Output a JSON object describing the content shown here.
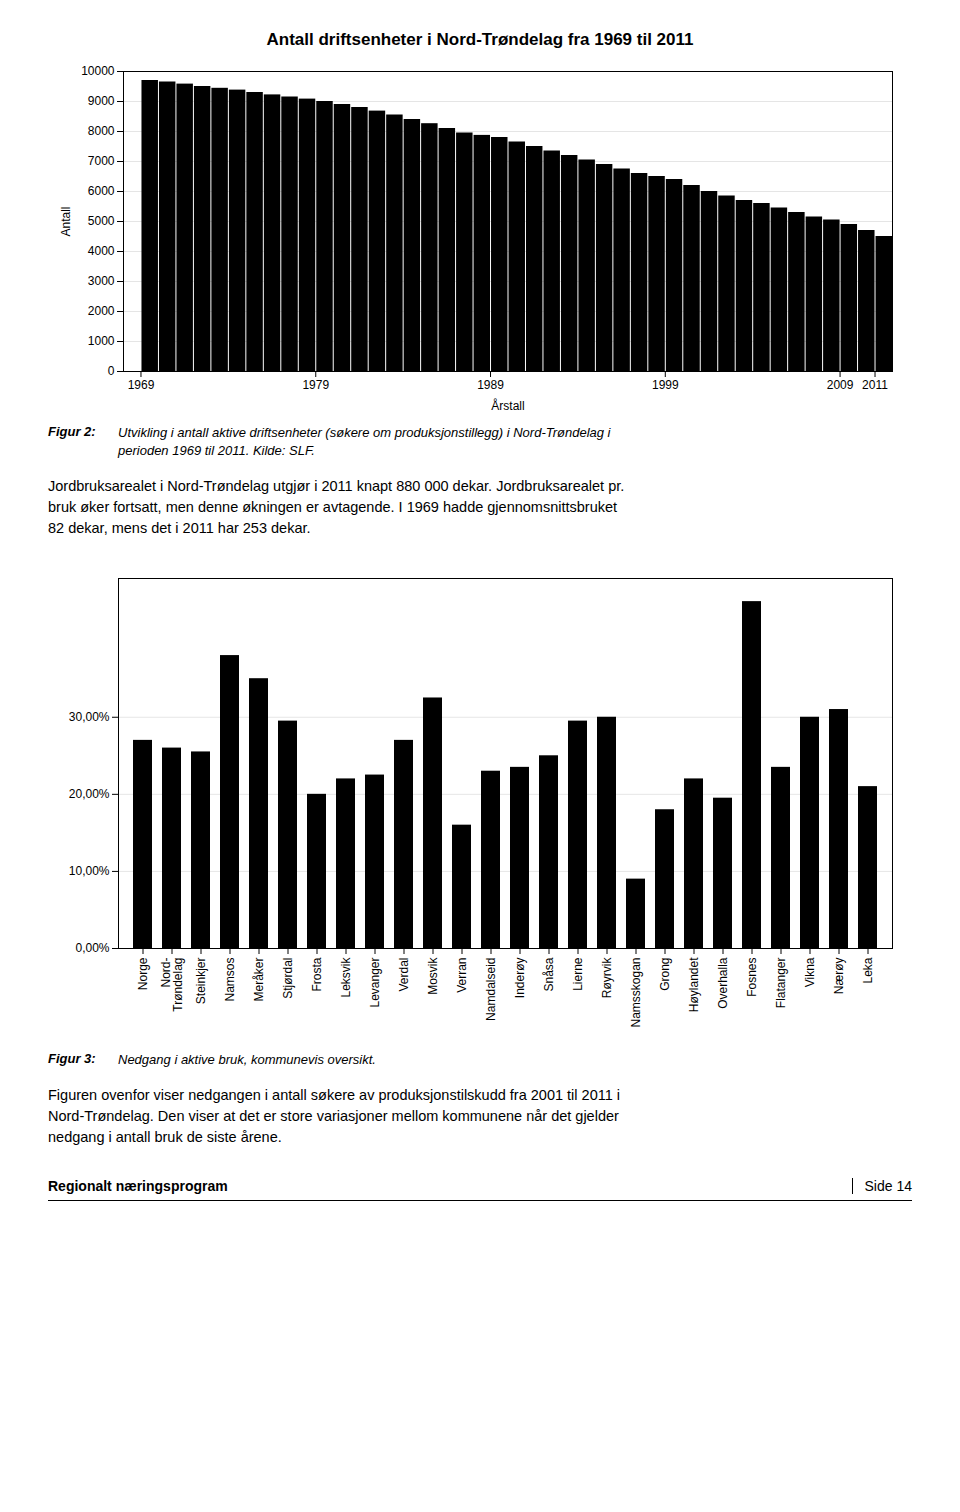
{
  "chart_data": [
    {
      "type": "bar",
      "title": "Antall driftsenheter i Nord-Trøndelag fra 1969 til 2011",
      "xlabel": "Årstall",
      "ylabel": "Antall",
      "x": [
        1969,
        1970,
        1971,
        1972,
        1973,
        1974,
        1975,
        1976,
        1977,
        1978,
        1979,
        1980,
        1981,
        1982,
        1983,
        1984,
        1985,
        1986,
        1987,
        1988,
        1989,
        1990,
        1991,
        1992,
        1993,
        1994,
        1995,
        1996,
        1997,
        1998,
        1999,
        2000,
        2001,
        2002,
        2003,
        2004,
        2005,
        2006,
        2007,
        2008,
        2009,
        2010,
        2011
      ],
      "values": [
        9700,
        9650,
        9580,
        9500,
        9440,
        9380,
        9300,
        9220,
        9150,
        9080,
        9000,
        8900,
        8800,
        8680,
        8550,
        8400,
        8260,
        8100,
        7950,
        7870,
        7800,
        7650,
        7500,
        7350,
        7200,
        7050,
        6900,
        6750,
        6600,
        6500,
        6400,
        6200,
        6000,
        5850,
        5700,
        5600,
        5450,
        5300,
        5150,
        5050,
        4900,
        4700,
        4500
      ],
      "color": "#000000",
      "xlim": [
        1968,
        2012
      ],
      "xticks": [
        1969,
        1979,
        1989,
        1999,
        2009,
        2011
      ],
      "ylim": [
        0,
        10000
      ],
      "yticks": [
        0,
        1000,
        2000,
        3000,
        4000,
        5000,
        6000,
        7000,
        8000,
        9000,
        10000
      ],
      "grid": true,
      "annotations": [
        [
          "Figur 2:",
          "Utvikling i antall aktive driftsenheter (søkere om produksjonstillegg) i Nord-Trøndelag i",
          "perioden 1969 til 2011. Kilde: SLF."
        ],
        [
          "Jordbruksarealet i Nord-Trøndelag utgjør i 2011 knapt 880 000 dekar. Jordbruksarealet pr.",
          "bruk øker fortsatt, men denne økningen er avtagende. I 1969 hadde gjennomsnittsbruket",
          "82 dekar, mens det i 2011 har 253 dekar."
        ]
      ]
    },
    {
      "type": "bar",
      "categories": [
        "Norge",
        "Nord-\nTrøndelag",
        "Steinkjer",
        "Namsos",
        "Meråker",
        "Stjørdal",
        "Frosta",
        "Leksvik",
        "Levanger",
        "Verdal",
        "Mosvik",
        "Verran",
        "Namdalseid",
        "Inderøy",
        "Snåsa",
        "Lierne",
        "Røyrvik",
        "Namsskogan",
        "Grong",
        "Høylandet",
        "Overhalla",
        "Fosnes",
        "Flatanger",
        "Vikna",
        "Nærøy",
        "Leka"
      ],
      "values": [
        27.0,
        26.0,
        25.5,
        38.0,
        35.0,
        29.5,
        20.0,
        22.0,
        22.5,
        27.0,
        32.5,
        16.0,
        23.0,
        23.5,
        25.0,
        29.5,
        30.0,
        9.0,
        18.0,
        22.0,
        19.5,
        45.0,
        23.5,
        30.0,
        31.0,
        21.0
      ],
      "color": "#000000",
      "ylim": [
        0,
        48
      ],
      "yticks": [
        {
          "value": 0,
          "label": "0,00%"
        },
        {
          "value": 10,
          "label": "10,00%"
        },
        {
          "value": 20,
          "label": "20,00%"
        },
        {
          "value": 30,
          "label": "30,00%"
        }
      ],
      "grid": true,
      "annotations": [
        [
          "Figur 3:",
          "Nedgang i aktive bruk, kommunevis oversikt."
        ],
        [
          "Figuren ovenfor viser nedgangen i antall søkere av produksjonstilskudd fra 2001 til 2011 i",
          "Nord-Trøndelag. Den viser at det er store variasjoner mellom kommunene når det gjelder",
          "nedgang i antall bruk de siste årene."
        ],
        [
          "Regionalt næringsprogram",
          "Side 14"
        ]
      ]
    }
  ]
}
